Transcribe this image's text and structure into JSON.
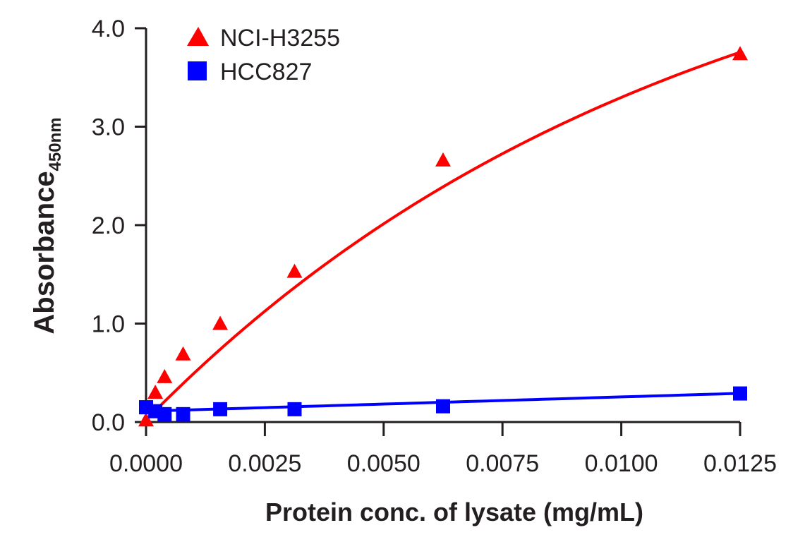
{
  "chart_data": {
    "type": "line",
    "title": "",
    "xlabel": "Protein conc. of lysate (mg/mL)",
    "ylabel": "Absorbance",
    "ylabel_subscript": "450nm",
    "xlim": [
      0,
      0.0125
    ],
    "ylim": [
      0,
      4.0
    ],
    "x_ticks": [
      "0.0000",
      "0.0025",
      "0.0050",
      "0.0075",
      "0.0100",
      "0.0125"
    ],
    "x_tick_values": [
      0,
      0.0025,
      0.005,
      0.0075,
      0.01,
      0.0125
    ],
    "y_ticks": [
      "0.0",
      "1.0",
      "2.0",
      "3.0",
      "4.0"
    ],
    "y_tick_values": [
      0,
      1,
      2,
      3,
      4
    ],
    "grid": false,
    "legend_position": "top-left",
    "x": [
      0,
      0.000195,
      0.00039,
      0.00078,
      0.00156,
      0.003125,
      0.00625,
      0.0125
    ],
    "series": [
      {
        "name": "NCI-H3255",
        "marker": "triangle",
        "color": "#ff0000",
        "values": [
          0.02,
          0.3,
          0.46,
          0.69,
          1.0,
          1.53,
          2.66,
          3.74
        ]
      },
      {
        "name": "HCC827",
        "marker": "square",
        "color": "#0000ff",
        "values": [
          0.15,
          0.11,
          0.08,
          0.08,
          0.13,
          0.13,
          0.16,
          0.29
        ]
      }
    ]
  }
}
